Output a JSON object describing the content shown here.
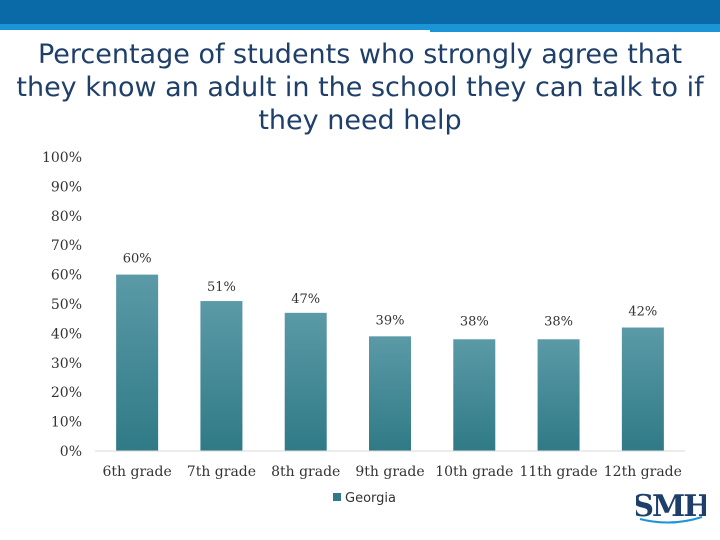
{
  "title_lines": [
    "Percentage of students who strongly agree that",
    "they know an adult in the school they can talk to if",
    "they need help"
  ],
  "logo_text": "SMH",
  "colors": {
    "band_dark": "#0a6aa8",
    "band_light": "#1b95d6",
    "bar_top": "#5b9aa7",
    "bar_bottom": "#2f7a86",
    "title": "#1f3f6b",
    "logo": "#1f3f6b"
  },
  "chart_data": {
    "type": "bar",
    "categories": [
      "6th grade",
      "7th grade",
      "8th grade",
      "9th grade",
      "10th grade",
      "11th grade",
      "12th grade"
    ],
    "series": [
      {
        "name": "Georgia",
        "values": [
          60,
          51,
          47,
          39,
          38,
          38,
          42
        ]
      }
    ],
    "data_labels": [
      "60%",
      "51%",
      "47%",
      "39%",
      "38%",
      "38%",
      "42%"
    ],
    "y_ticks": [
      "0%",
      "10%",
      "20%",
      "30%",
      "40%",
      "50%",
      "60%",
      "70%",
      "80%",
      "90%",
      "100%"
    ],
    "ylim": [
      0,
      100
    ],
    "grid": false,
    "legend": "bottom-center"
  }
}
